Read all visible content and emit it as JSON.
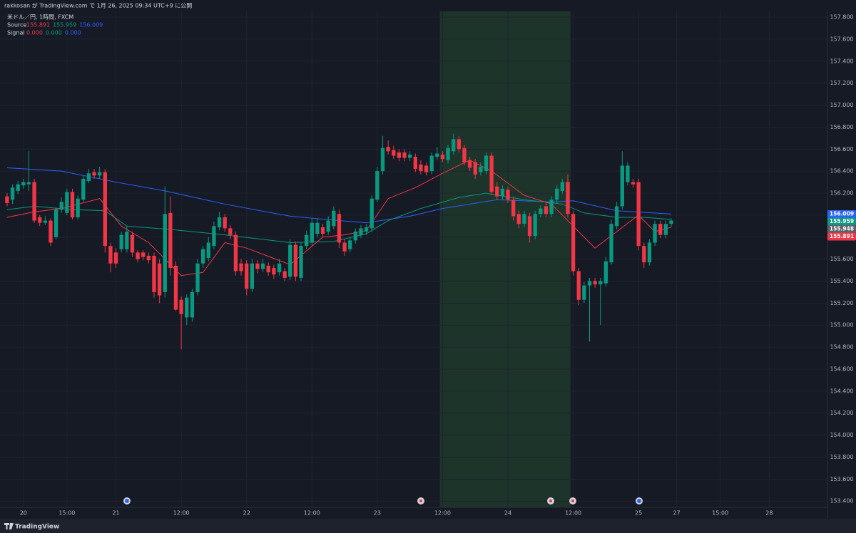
{
  "header": "rakkosan が TradingView.com で 1月 26, 2025 09:34 UTC+9 に公開",
  "footer": "TradingView",
  "chart_data": {
    "type": "candlestick",
    "title": "米ドル／円, 1時間, FXCM",
    "legend": [
      {
        "name": "Source",
        "values": [
          155.891,
          155.959,
          156.009
        ]
      },
      {
        "name": "Signal",
        "values": [
          0,
          0,
          0
        ],
        "value_labels": [
          "0.000",
          "0.000",
          "0.000"
        ]
      }
    ],
    "up_color": "#089981",
    "down_color": "#f23645",
    "ohlc": [
      [
        156.17,
        156.2,
        156.08,
        156.11
      ],
      [
        156.14,
        156.28,
        156.1,
        156.25
      ],
      [
        156.22,
        156.31,
        156.19,
        156.28
      ],
      [
        156.27,
        156.33,
        156.24,
        156.3
      ],
      [
        156.28,
        156.58,
        156.22,
        156.3
      ],
      [
        156.3,
        156.33,
        155.93,
        155.95
      ],
      [
        155.98,
        156.0,
        155.9,
        155.93
      ],
      [
        155.93,
        155.99,
        155.91,
        155.95
      ],
      [
        155.95,
        155.97,
        155.72,
        155.75
      ],
      [
        155.8,
        156.07,
        155.78,
        156.05
      ],
      [
        156.05,
        156.16,
        156.02,
        156.12
      ],
      [
        156.02,
        156.24,
        156.0,
        156.21
      ],
      [
        156.21,
        156.24,
        155.96,
        155.98
      ],
      [
        155.98,
        156.18,
        155.96,
        156.15
      ],
      [
        156.14,
        156.36,
        156.12,
        156.33
      ],
      [
        156.31,
        156.42,
        156.29,
        156.38
      ],
      [
        156.39,
        156.42,
        156.33,
        156.36
      ],
      [
        156.36,
        156.44,
        156.33,
        156.39
      ],
      [
        156.39,
        156.42,
        155.66,
        155.72
      ],
      [
        155.72,
        155.75,
        155.48,
        155.56
      ],
      [
        155.66,
        155.7,
        155.52,
        155.56
      ],
      [
        155.69,
        155.85,
        155.66,
        155.82
      ],
      [
        155.69,
        155.9,
        155.66,
        155.85
      ],
      [
        155.82,
        155.85,
        155.62,
        155.66
      ],
      [
        155.66,
        155.68,
        155.57,
        155.6
      ],
      [
        155.66,
        155.68,
        155.59,
        155.62
      ],
      [
        155.63,
        155.66,
        155.56,
        155.59
      ],
      [
        155.63,
        155.66,
        155.25,
        155.3
      ],
      [
        155.56,
        155.6,
        155.2,
        155.27
      ],
      [
        155.3,
        156.26,
        155.25,
        156.01
      ],
      [
        156.02,
        156.17,
        155.45,
        155.52
      ],
      [
        155.54,
        155.58,
        155.13,
        155.14
      ],
      [
        155.23,
        155.26,
        154.78,
        155.1
      ],
      [
        155.07,
        155.28,
        155.0,
        155.25
      ],
      [
        155.07,
        155.33,
        155.03,
        155.3
      ],
      [
        155.3,
        155.6,
        155.27,
        155.56
      ],
      [
        155.56,
        155.72,
        155.52,
        155.69
      ],
      [
        155.61,
        155.8,
        155.58,
        155.75
      ],
      [
        155.72,
        155.94,
        155.69,
        155.9
      ],
      [
        155.89,
        156.03,
        155.86,
        155.98
      ],
      [
        155.98,
        156.01,
        155.85,
        155.88
      ],
      [
        155.88,
        155.91,
        155.78,
        155.82
      ],
      [
        155.82,
        155.85,
        155.45,
        155.49
      ],
      [
        155.56,
        155.6,
        155.45,
        155.49
      ],
      [
        155.56,
        155.59,
        155.27,
        155.33
      ],
      [
        155.33,
        155.6,
        155.3,
        155.56
      ],
      [
        155.56,
        155.59,
        155.47,
        155.51
      ],
      [
        155.51,
        155.6,
        155.48,
        155.56
      ],
      [
        155.54,
        155.57,
        155.45,
        155.48
      ],
      [
        155.52,
        155.55,
        155.42,
        155.46
      ],
      [
        155.48,
        155.6,
        155.45,
        155.56
      ],
      [
        155.49,
        155.52,
        155.4,
        155.43
      ],
      [
        155.44,
        155.78,
        155.41,
        155.73
      ],
      [
        155.73,
        155.76,
        155.4,
        155.44
      ],
      [
        155.43,
        155.75,
        155.4,
        155.72
      ],
      [
        155.72,
        155.86,
        155.69,
        155.82
      ],
      [
        155.75,
        155.97,
        155.72,
        155.93
      ],
      [
        155.83,
        155.97,
        155.8,
        155.93
      ],
      [
        155.89,
        155.92,
        155.8,
        155.83
      ],
      [
        155.85,
        155.99,
        155.82,
        155.95
      ],
      [
        155.9,
        156.08,
        155.87,
        156.04
      ],
      [
        156.01,
        156.05,
        155.7,
        155.75
      ],
      [
        155.75,
        155.78,
        155.63,
        155.67
      ],
      [
        155.69,
        155.8,
        155.66,
        155.77
      ],
      [
        155.77,
        155.88,
        155.74,
        155.85
      ],
      [
        155.82,
        155.91,
        155.79,
        155.88
      ],
      [
        155.85,
        155.92,
        155.82,
        155.89
      ],
      [
        155.88,
        156.18,
        155.85,
        156.15
      ],
      [
        156.14,
        156.44,
        156.12,
        156.4
      ],
      [
        156.4,
        156.72,
        156.37,
        156.61
      ],
      [
        156.62,
        156.68,
        156.55,
        156.58
      ],
      [
        156.59,
        156.63,
        156.51,
        156.54
      ],
      [
        156.57,
        156.6,
        156.49,
        156.52
      ],
      [
        156.57,
        156.6,
        156.49,
        156.52
      ],
      [
        156.52,
        156.58,
        156.49,
        156.55
      ],
      [
        156.53,
        156.56,
        156.39,
        156.42
      ],
      [
        156.46,
        156.5,
        156.37,
        156.4
      ],
      [
        156.45,
        156.48,
        156.36,
        156.39
      ],
      [
        156.4,
        156.57,
        156.37,
        156.54
      ],
      [
        156.53,
        156.62,
        156.5,
        156.56
      ],
      [
        156.55,
        156.58,
        156.48,
        156.51
      ],
      [
        156.5,
        156.64,
        156.47,
        156.61
      ],
      [
        156.58,
        156.74,
        156.55,
        156.69
      ],
      [
        156.69,
        156.72,
        156.57,
        156.6
      ],
      [
        156.61,
        156.64,
        156.45,
        156.48
      ],
      [
        156.5,
        156.53,
        156.4,
        156.43
      ],
      [
        156.48,
        156.51,
        156.33,
        156.37
      ],
      [
        156.39,
        156.48,
        156.36,
        156.44
      ],
      [
        156.4,
        156.57,
        156.37,
        156.54
      ],
      [
        156.54,
        156.57,
        156.18,
        156.21
      ],
      [
        156.26,
        156.3,
        156.14,
        156.17
      ],
      [
        156.17,
        156.27,
        156.14,
        156.24
      ],
      [
        156.23,
        156.26,
        156.11,
        156.14
      ],
      [
        156.14,
        156.17,
        155.95,
        155.99
      ],
      [
        156.01,
        156.04,
        155.88,
        155.92
      ],
      [
        155.92,
        156.04,
        155.89,
        156.01
      ],
      [
        155.99,
        156.02,
        155.75,
        155.81
      ],
      [
        155.81,
        156.04,
        155.78,
        156.01
      ],
      [
        156.01,
        156.09,
        155.98,
        156.06
      ],
      [
        156.08,
        156.11,
        155.98,
        156.01
      ],
      [
        156.01,
        156.17,
        155.98,
        156.14
      ],
      [
        156.14,
        156.27,
        156.11,
        156.24
      ],
      [
        156.22,
        156.33,
        156.19,
        156.3
      ],
      [
        156.3,
        156.37,
        155.98,
        156.01
      ],
      [
        156.01,
        156.04,
        155.45,
        155.49
      ],
      [
        155.49,
        155.52,
        155.18,
        155.23
      ],
      [
        155.23,
        155.39,
        155.2,
        155.36
      ],
      [
        155.36,
        155.43,
        154.85,
        155.4
      ],
      [
        155.4,
        155.43,
        155.34,
        155.37
      ],
      [
        155.37,
        155.43,
        155.0,
        155.4
      ],
      [
        155.38,
        155.62,
        155.35,
        155.58
      ],
      [
        155.57,
        155.96,
        155.55,
        155.92
      ],
      [
        155.9,
        156.12,
        155.87,
        156.08
      ],
      [
        156.08,
        156.58,
        156.05,
        156.45
      ],
      [
        156.3,
        156.48,
        156.27,
        156.45
      ],
      [
        156.3,
        156.33,
        156.25,
        156.28
      ],
      [
        156.3,
        156.33,
        155.68,
        155.72
      ],
      [
        155.72,
        155.75,
        155.52,
        155.57
      ],
      [
        155.57,
        155.78,
        155.54,
        155.75
      ],
      [
        155.75,
        155.95,
        155.72,
        155.92
      ],
      [
        155.92,
        155.95,
        155.79,
        155.82
      ],
      [
        155.82,
        155.95,
        155.79,
        155.92
      ],
      [
        155.92,
        155.97,
        155.89,
        155.95
      ]
    ],
    "lines": [
      {
        "color": "#2962ff",
        "x": [
          0,
          10,
          20,
          29,
          40,
          52,
          61,
          66,
          74,
          80,
          90,
          100,
          104,
          112,
          122
        ],
        "values": [
          156.43,
          156.4,
          156.3,
          156.22,
          156.1,
          155.99,
          155.95,
          155.93,
          155.99,
          156.06,
          156.14,
          156.12,
          156.13,
          156.04,
          156.01
        ]
      },
      {
        "color": "#089981",
        "x": [
          0,
          5,
          12,
          18,
          22,
          30,
          40,
          52,
          60,
          66,
          70,
          76,
          83,
          88,
          95,
          102,
          106,
          112,
          117,
          122
        ],
        "values": [
          156.05,
          156.08,
          156.05,
          156.04,
          155.9,
          155.87,
          155.82,
          155.75,
          155.76,
          155.83,
          155.95,
          156.06,
          156.16,
          156.2,
          156.14,
          156.1,
          156.02,
          155.98,
          155.98,
          155.96
        ]
      },
      {
        "color": "#f23645",
        "x": [
          0,
          5,
          10,
          17,
          21,
          26,
          32,
          36,
          40,
          44,
          52,
          58,
          62,
          66,
          70,
          75,
          80,
          85,
          89,
          95,
          100,
          104,
          108,
          112,
          116,
          119,
          122
        ],
        "values": [
          155.98,
          156.03,
          156.06,
          156.15,
          155.9,
          155.75,
          155.45,
          155.48,
          155.75,
          155.7,
          155.55,
          155.8,
          155.82,
          155.86,
          156.15,
          156.25,
          156.38,
          156.5,
          156.4,
          156.18,
          156.1,
          155.9,
          155.7,
          155.85,
          156.0,
          155.85,
          155.89
        ]
      }
    ],
    "price_tags": [
      {
        "value": 156.009,
        "color": "#2962ff"
      },
      {
        "value": 155.959,
        "color": "#089981"
      },
      {
        "value": 155.948,
        "color": "#5d606b"
      },
      {
        "value": 155.891,
        "color": "#f23645"
      }
    ],
    "highlight": {
      "from": 79.5,
      "to": 103.5,
      "color": "#1e3a2b"
    },
    "xlim": [
      -1.3,
      150.7
    ],
    "ylim": [
      153.343,
      157.852
    ],
    "xticks": [
      {
        "value": 3,
        "label": "20"
      },
      {
        "value": 11,
        "label": "15:00"
      },
      {
        "value": 20,
        "label": "21"
      },
      {
        "value": 32,
        "label": "12:00"
      },
      {
        "value": 44,
        "label": "22"
      },
      {
        "value": 56,
        "label": "12:00"
      },
      {
        "value": 68,
        "label": "23"
      },
      {
        "value": 80,
        "label": "12:00"
      },
      {
        "value": 92,
        "label": "24"
      },
      {
        "value": 104,
        "label": "12:00"
      },
      {
        "value": 116,
        "label": "25"
      },
      {
        "value": 123,
        "label": "27"
      },
      {
        "value": 131,
        "label": "15:00"
      },
      {
        "value": 140,
        "label": "28"
      }
    ],
    "yticks": [
      {
        "value": 153.4,
        "label": "153.400"
      },
      {
        "value": 153.6,
        "label": "153.600"
      },
      {
        "value": 153.8,
        "label": "153.800"
      },
      {
        "value": 154,
        "label": "154.000"
      },
      {
        "value": 154.2,
        "label": "154.200"
      },
      {
        "value": 154.4,
        "label": "154.400"
      },
      {
        "value": 154.6,
        "label": "154.600"
      },
      {
        "value": 154.8,
        "label": "154.800"
      },
      {
        "value": 155,
        "label": "155.000"
      },
      {
        "value": 155.2,
        "label": "155.200"
      },
      {
        "value": 155.4,
        "label": "155.400"
      },
      {
        "value": 155.6,
        "label": "155.600"
      },
      {
        "value": 155.8,
        "label": "155.800"
      },
      {
        "value": 156,
        "label": "156.000"
      },
      {
        "value": 156.2,
        "label": "156.200"
      },
      {
        "value": 156.4,
        "label": "156.400"
      },
      {
        "value": 156.6,
        "label": "156.600"
      },
      {
        "value": 156.8,
        "label": "156.800"
      },
      {
        "value": 157,
        "label": "157.000"
      },
      {
        "value": 157.2,
        "label": "157.200"
      },
      {
        "value": 157.4,
        "label": "157.400"
      },
      {
        "value": 157.6,
        "label": "157.600"
      },
      {
        "value": 157.8,
        "label": "157.800"
      }
    ],
    "grid": true
  }
}
